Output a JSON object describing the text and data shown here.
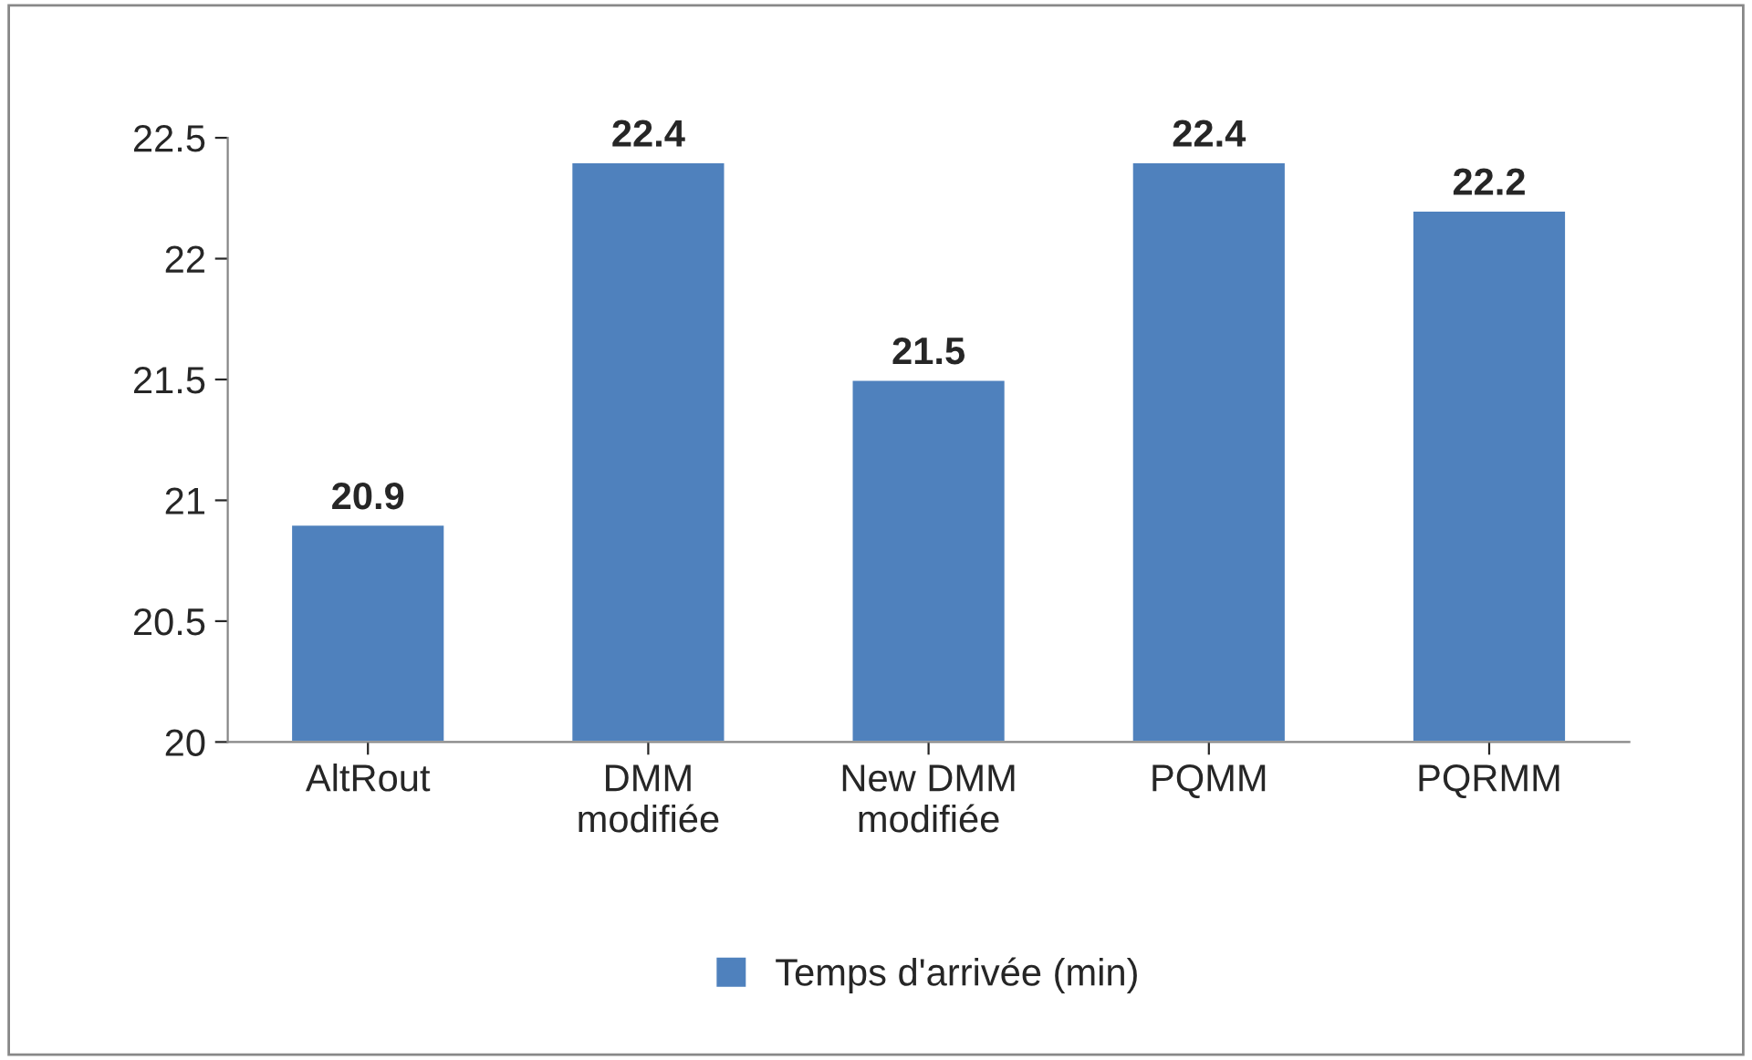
{
  "chart_data": {
    "type": "bar",
    "categories": [
      "AltRout",
      "DMM\nmodifiée",
      "New DMM\nmodifiée",
      "PQMM",
      "PQRMM"
    ],
    "series": [
      {
        "name": "Temps d'arrivée (min)",
        "color": "#4f81bd",
        "values": [
          20.9,
          22.4,
          21.5,
          22.4,
          22.2
        ]
      }
    ],
    "ylim": [
      20,
      22.5
    ],
    "yticks": [
      20,
      20.5,
      21,
      21.5,
      22,
      22.5
    ],
    "data_labels": true,
    "legend": "bottom",
    "grid": false
  }
}
